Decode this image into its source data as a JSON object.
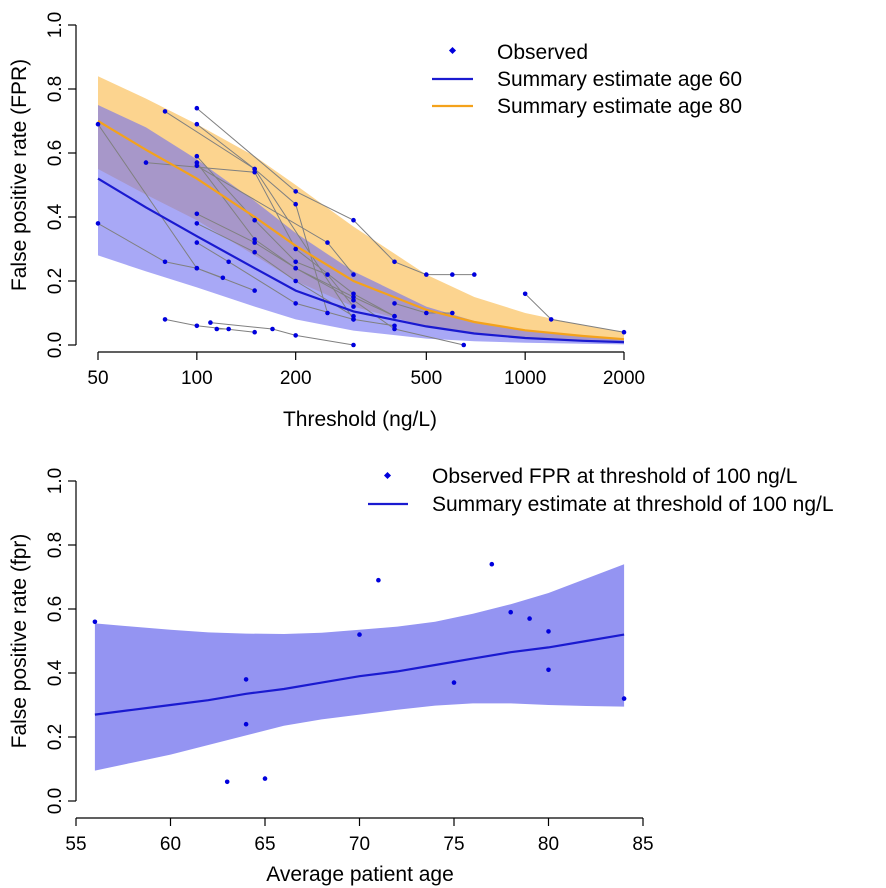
{
  "chart_data": [
    {
      "type": "line",
      "xlabel": "Threshold (ng/L)",
      "ylabel": "False positive rate (FPR)",
      "x_scale": "log",
      "xlim": [
        50,
        2000
      ],
      "ylim": [
        0,
        1
      ],
      "x_ticks": [
        50,
        100,
        200,
        500,
        1000,
        2000
      ],
      "x_tick_labels": [
        "50",
        "100",
        "200",
        "500",
        "1000",
        "2000"
      ],
      "y_ticks": [
        0,
        0.2,
        0.4,
        0.6,
        0.8,
        1.0
      ],
      "y_tick_labels": [
        "0.0",
        "0.2",
        "0.4",
        "0.6",
        "0.8",
        "1.0"
      ],
      "grid": false,
      "legend_position": "top-right",
      "legend": [
        {
          "label": "Observed",
          "kind": "point",
          "color": "#0000dd"
        },
        {
          "label": "Summary estimate age 60",
          "kind": "line",
          "color": "#1010cc"
        },
        {
          "label": "Summary estimate age 80",
          "kind": "line",
          "color": "#f4a21b"
        }
      ],
      "colors": {
        "observed_point": "#0000dd",
        "study_line": "#808080",
        "age60_line": "#1a1ad0",
        "age60_band": "#6e6ef0",
        "age80_line": "#f4a21b",
        "age80_band": "#fbc66a"
      },
      "series": [
        {
          "name": "Summary estimate age 60",
          "x": [
            50,
            70,
            100,
            150,
            200,
            300,
            500,
            700,
            1000,
            1500,
            2000
          ],
          "y": [
            0.52,
            0.43,
            0.34,
            0.24,
            0.17,
            0.105,
            0.058,
            0.036,
            0.022,
            0.013,
            0.009
          ],
          "lower": [
            0.28,
            0.23,
            0.18,
            0.12,
            0.08,
            0.045,
            0.02,
            0.012,
            0.007,
            0.004,
            0.002
          ],
          "upper": [
            0.75,
            0.68,
            0.58,
            0.45,
            0.35,
            0.23,
            0.12,
            0.075,
            0.045,
            0.028,
            0.018
          ]
        },
        {
          "name": "Summary estimate age 80",
          "x": [
            50,
            70,
            100,
            150,
            200,
            300,
            500,
            700,
            1000,
            1500,
            2000
          ],
          "y": [
            0.7,
            0.61,
            0.52,
            0.4,
            0.31,
            0.2,
            0.11,
            0.072,
            0.046,
            0.028,
            0.018
          ],
          "lower": [
            0.55,
            0.47,
            0.39,
            0.28,
            0.2,
            0.12,
            0.058,
            0.036,
            0.022,
            0.012,
            0.008
          ],
          "upper": [
            0.84,
            0.77,
            0.69,
            0.59,
            0.5,
            0.37,
            0.22,
            0.15,
            0.1,
            0.062,
            0.04
          ]
        }
      ],
      "studies": [
        {
          "points": [
            [
              50,
              0.69
            ],
            [
              100,
              0.24
            ],
            [
              150,
              0.17
            ]
          ]
        },
        {
          "points": [
            [
              50,
              0.38
            ],
            [
              80,
              0.26
            ],
            [
              100,
              0.24
            ],
            [
              120,
              0.21
            ]
          ]
        },
        {
          "points": [
            [
              80,
              0.73
            ],
            [
              150,
              0.55
            ],
            [
              200,
              0.44
            ],
            [
              250,
              0.1
            ]
          ]
        },
        {
          "points": [
            [
              100,
              0.74
            ],
            [
              200,
              0.48
            ],
            [
              300,
              0.39
            ],
            [
              400,
              0.26
            ],
            [
              500,
              0.22
            ],
            [
              600,
              0.22
            ],
            [
              700,
              0.22
            ]
          ]
        },
        {
          "points": [
            [
              100,
              0.69
            ],
            [
              150,
              0.55
            ],
            [
              300,
              0.08
            ],
            [
              400,
              0.06
            ]
          ]
        },
        {
          "points": [
            [
              70,
              0.57
            ],
            [
              150,
              0.54
            ],
            [
              200,
              0.3
            ],
            [
              300,
              0.16
            ],
            [
              400,
              0.09
            ]
          ]
        },
        {
          "points": [
            [
              100,
              0.59
            ],
            [
              150,
              0.39
            ],
            [
              200,
              0.26
            ],
            [
              250,
              0.22
            ],
            [
              300,
              0.12
            ]
          ]
        },
        {
          "points": [
            [
              100,
              0.57
            ],
            [
              150,
              0.33
            ],
            [
              200,
              0.24
            ],
            [
              300,
              0.15
            ],
            [
              400,
              0.09
            ]
          ]
        },
        {
          "points": [
            [
              100,
              0.56
            ],
            [
              250,
              0.32
            ],
            [
              300,
              0.22
            ]
          ]
        },
        {
          "points": [
            [
              100,
              0.41
            ],
            [
              150,
              0.32
            ],
            [
              200,
              0.24
            ],
            [
              300,
              0.14
            ],
            [
              400,
              0.05
            ],
            [
              650,
              0.0
            ]
          ]
        },
        {
          "points": [
            [
              100,
              0.38
            ],
            [
              150,
              0.29
            ],
            [
              200,
              0.2
            ],
            [
              300,
              0.09
            ]
          ]
        },
        {
          "points": [
            [
              100,
              0.32
            ],
            [
              125,
              0.26
            ],
            [
              200,
              0.13
            ],
            [
              300,
              0.08
            ]
          ]
        },
        {
          "points": [
            [
              80,
              0.08
            ],
            [
              100,
              0.06
            ],
            [
              150,
              0.04
            ]
          ]
        },
        {
          "points": [
            [
              110,
              0.07
            ],
            [
              170,
              0.05
            ],
            [
              200,
              0.03
            ],
            [
              300,
              0.0
            ]
          ]
        },
        {
          "points": [
            [
              115,
              0.05
            ],
            [
              125,
              0.05
            ]
          ]
        },
        {
          "points": [
            [
              1000,
              0.16
            ],
            [
              1200,
              0.08
            ],
            [
              2000,
              0.04
            ]
          ]
        },
        {
          "points": [
            [
              400,
              0.13
            ],
            [
              500,
              0.1
            ],
            [
              600,
              0.1
            ]
          ]
        }
      ]
    },
    {
      "type": "scatter",
      "xlabel": "Average patient age",
      "ylabel": "False positive rate (fpr)",
      "xlim": [
        55,
        85
      ],
      "ylim": [
        0,
        1
      ],
      "x_ticks": [
        55,
        60,
        65,
        70,
        75,
        80,
        85
      ],
      "x_tick_labels": [
        "55",
        "60",
        "65",
        "70",
        "75",
        "80",
        "85"
      ],
      "y_ticks": [
        0,
        0.2,
        0.4,
        0.6,
        0.8,
        1.0
      ],
      "y_tick_labels": [
        "0.0",
        "0.2",
        "0.4",
        "0.6",
        "0.8",
        "1.0"
      ],
      "grid": false,
      "legend_position": "top-right",
      "legend": [
        {
          "label": "Observed FPR at threshold of 100 ng/L",
          "kind": "point",
          "color": "#0000dd"
        },
        {
          "label": "Summary estimate at threshold of 100 ng/L",
          "kind": "line",
          "color": "#1010cc"
        }
      ],
      "colors": {
        "observed_point": "#0000dd",
        "line": "#1a1ad0",
        "band": "#9494f2"
      },
      "points": [
        [
          56,
          0.56
        ],
        [
          63,
          0.06
        ],
        [
          64,
          0.38
        ],
        [
          64,
          0.24
        ],
        [
          65,
          0.07
        ],
        [
          70,
          0.52
        ],
        [
          71,
          0.69
        ],
        [
          75,
          0.37
        ],
        [
          77,
          0.74
        ],
        [
          78,
          0.59
        ],
        [
          79,
          0.57
        ],
        [
          80,
          0.53
        ],
        [
          80,
          0.41
        ],
        [
          84,
          0.32
        ]
      ],
      "summary": {
        "x": [
          56,
          58,
          60,
          62,
          64,
          66,
          68,
          70,
          72,
          74,
          76,
          78,
          80,
          82,
          84
        ],
        "y": [
          0.27,
          0.285,
          0.3,
          0.315,
          0.335,
          0.35,
          0.37,
          0.39,
          0.405,
          0.425,
          0.445,
          0.465,
          0.48,
          0.5,
          0.52
        ],
        "lower": [
          0.095,
          0.12,
          0.145,
          0.175,
          0.205,
          0.235,
          0.255,
          0.27,
          0.285,
          0.298,
          0.305,
          0.305,
          0.3,
          0.297,
          0.295
        ],
        "upper": [
          0.555,
          0.545,
          0.535,
          0.527,
          0.523,
          0.522,
          0.526,
          0.535,
          0.545,
          0.56,
          0.585,
          0.615,
          0.65,
          0.695,
          0.74
        ]
      }
    }
  ]
}
